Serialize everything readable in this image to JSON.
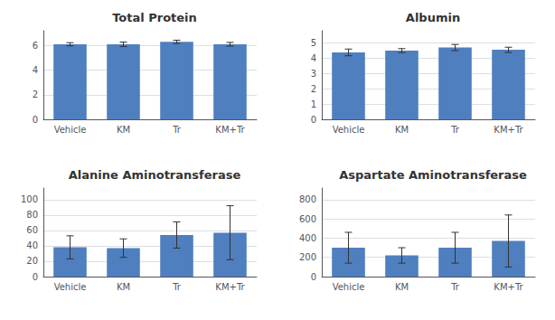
{
  "chart_data": [
    {
      "type": "bar",
      "title": "Total Protein",
      "categories": [
        "Vehicle",
        "KM",
        "Tr",
        "KM+Tr"
      ],
      "values": [
        6.1,
        6.1,
        6.3,
        6.1
      ],
      "errors": [
        0.13,
        0.18,
        0.13,
        0.15
      ],
      "color": "#4f7fbf",
      "ylim": [
        0,
        7.2
      ],
      "yticks": [
        0,
        2,
        4,
        6
      ],
      "grid": true
    },
    {
      "type": "bar",
      "title": "Albumin",
      "categories": [
        "Vehicle",
        "KM",
        "Tr",
        "KM+Tr"
      ],
      "values": [
        4.38,
        4.5,
        4.7,
        4.55
      ],
      "errors": [
        0.22,
        0.13,
        0.2,
        0.17
      ],
      "color": "#4f7fbf",
      "ylim": [
        0,
        5.8
      ],
      "yticks": [
        0,
        1,
        2,
        3,
        4,
        5
      ],
      "grid": true
    },
    {
      "type": "bar",
      "title": "Alanine Aminotransferase",
      "categories": [
        "Vehicle",
        "KM",
        "Tr",
        "KM+Tr"
      ],
      "values": [
        38,
        37,
        54,
        57
      ],
      "errors": [
        15,
        12,
        17,
        35
      ],
      "color": "#4f7fbf",
      "ylim": [
        0,
        115
      ],
      "yticks": [
        0,
        20,
        40,
        60,
        80,
        100
      ],
      "grid": true
    },
    {
      "type": "bar",
      "title": "Aspartate Aminotransferase",
      "categories": [
        "Vehicle",
        "KM",
        "Tr",
        "KM+Tr"
      ],
      "values": [
        300,
        220,
        300,
        370
      ],
      "errors": [
        160,
        80,
        160,
        270
      ],
      "color": "#4f7fbf",
      "ylim": [
        0,
        920
      ],
      "yticks": [
        0,
        200,
        400,
        600,
        800
      ],
      "grid": true
    }
  ]
}
